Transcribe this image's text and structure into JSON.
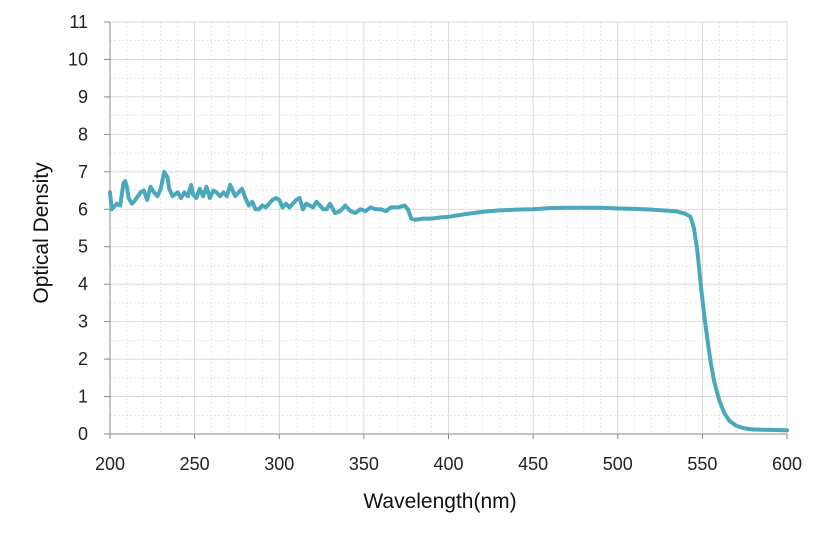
{
  "chart_data": {
    "type": "line",
    "title": "",
    "xlabel": "Wavelength(nm)",
    "ylabel": "Optical Density",
    "xlim": [
      200,
      600
    ],
    "ylim": [
      0,
      11
    ],
    "x_ticks": [
      200,
      250,
      300,
      350,
      400,
      450,
      500,
      550,
      600
    ],
    "y_ticks": [
      0,
      1,
      2,
      3,
      4,
      5,
      6,
      7,
      8,
      9,
      10,
      11
    ],
    "grid": true,
    "legend": "none",
    "colors": {
      "line": "#4aa8bd",
      "axis": "#888888",
      "grid": "#d9d9d9"
    },
    "series": [
      {
        "x": [
          200,
          201,
          202,
          204,
          206,
          208,
          209,
          210,
          211,
          213,
          215,
          218,
          220,
          222,
          224,
          226,
          228,
          230,
          232,
          234,
          235,
          237,
          240,
          242,
          244,
          246,
          248,
          249,
          251,
          253,
          255,
          257,
          259,
          261,
          263,
          265,
          267,
          269,
          271,
          272,
          274,
          276,
          278,
          280,
          282,
          284,
          286,
          288,
          290,
          292,
          294,
          296,
          298,
          300,
          302,
          304,
          306,
          308,
          310,
          312,
          314,
          316,
          318,
          320,
          322,
          324,
          326,
          328,
          330,
          333,
          336,
          339,
          342,
          345,
          348,
          351,
          354,
          357,
          360,
          363,
          366,
          370,
          374,
          376,
          378,
          380,
          385,
          390,
          395,
          400,
          410,
          420,
          430,
          440,
          450,
          460,
          470,
          480,
          490,
          500,
          510,
          520,
          530,
          535,
          540,
          543,
          545,
          547,
          549,
          551,
          553,
          555,
          557,
          560,
          563,
          566,
          570,
          575,
          580,
          590,
          600
        ],
        "y": [
          6.45,
          6.0,
          6.05,
          6.15,
          6.1,
          6.7,
          6.75,
          6.6,
          6.3,
          6.15,
          6.25,
          6.45,
          6.5,
          6.25,
          6.6,
          6.45,
          6.35,
          6.55,
          7.0,
          6.85,
          6.55,
          6.35,
          6.45,
          6.3,
          6.45,
          6.35,
          6.65,
          6.4,
          6.3,
          6.55,
          6.35,
          6.6,
          6.3,
          6.5,
          6.45,
          6.35,
          6.45,
          6.35,
          6.65,
          6.55,
          6.35,
          6.45,
          6.55,
          6.3,
          6.1,
          6.2,
          6.0,
          6.0,
          6.1,
          6.05,
          6.15,
          6.25,
          6.3,
          6.25,
          6.05,
          6.15,
          6.05,
          6.15,
          6.25,
          6.3,
          6.0,
          6.15,
          6.1,
          6.05,
          6.2,
          6.1,
          6.0,
          6.0,
          6.15,
          5.9,
          5.95,
          6.1,
          5.95,
          5.9,
          6.0,
          5.95,
          6.05,
          6.0,
          6.0,
          5.95,
          6.05,
          6.05,
          6.1,
          6.0,
          5.75,
          5.72,
          5.75,
          5.75,
          5.78,
          5.8,
          5.87,
          5.93,
          5.97,
          5.99,
          6.0,
          6.03,
          6.04,
          6.04,
          6.04,
          6.02,
          6.01,
          5.99,
          5.96,
          5.94,
          5.88,
          5.8,
          5.5,
          4.9,
          4.0,
          3.2,
          2.5,
          1.9,
          1.4,
          0.9,
          0.55,
          0.35,
          0.22,
          0.15,
          0.12,
          0.11,
          0.1
        ]
      }
    ]
  }
}
